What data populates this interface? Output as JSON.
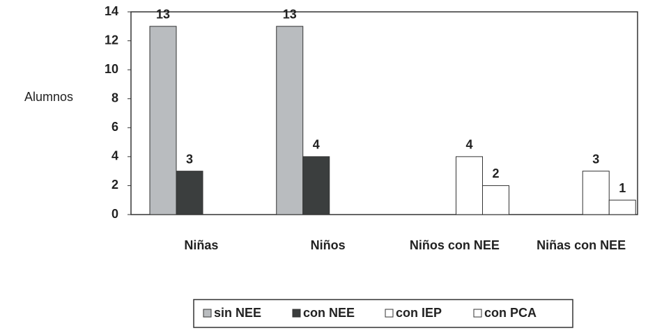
{
  "chart_data": {
    "type": "bar",
    "ylabel": "Alumnos",
    "categories": [
      "Niñas",
      "Niños",
      "Niños con NEE",
      "Niñas con NEE"
    ],
    "series": [
      {
        "name": "sin NEE",
        "color": "#b9bcbf",
        "values": [
          13,
          13,
          null,
          null
        ]
      },
      {
        "name": "con NEE",
        "color": "#3b3e3e",
        "values": [
          3,
          4,
          null,
          null
        ]
      },
      {
        "name": "con IEP",
        "color": "#ffffff",
        "values": [
          null,
          null,
          4,
          3
        ]
      },
      {
        "name": "con PCA",
        "color": "#ffffff",
        "values": [
          null,
          null,
          2,
          1
        ]
      }
    ],
    "ylim": [
      0,
      14
    ],
    "yticks": [
      0,
      2,
      4,
      6,
      8,
      10,
      12,
      14
    ],
    "grid": false
  }
}
